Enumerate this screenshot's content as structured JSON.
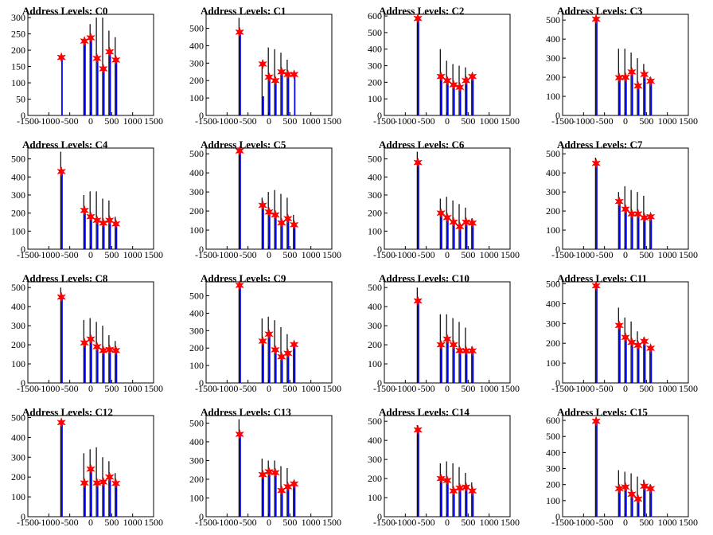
{
  "colors": {
    "black_bars": "#000000",
    "blue_bars": "#0000ff",
    "markers": "#ff0000",
    "frame": "#000000"
  },
  "chart_data": [
    {
      "type": "bar",
      "title": "Address Levels: C0",
      "xlim": [
        -1500,
        1500
      ],
      "ylim": [
        0,
        310
      ],
      "yticks": [
        0,
        50,
        100,
        150,
        200,
        250,
        300
      ],
      "xticks": [
        -1500,
        -1000,
        -500,
        0,
        500,
        1000,
        1500
      ],
      "peaks": [
        {
          "x": -700,
          "black": 0,
          "blue": 180,
          "marker": 178
        },
        {
          "x": -150,
          "black": 230,
          "blue": 230,
          "marker": 228
        },
        {
          "x": 0,
          "black": 280,
          "blue": 245,
          "marker": 238
        },
        {
          "x": 150,
          "black": 300,
          "blue": 180,
          "marker": 175
        },
        {
          "x": 300,
          "black": 300,
          "blue": 145,
          "marker": 143
        },
        {
          "x": 450,
          "black": 260,
          "blue": 200,
          "marker": 195
        },
        {
          "x": 600,
          "black": 240,
          "blue": 170,
          "marker": 170
        }
      ]
    },
    {
      "type": "bar",
      "title": "Address Levels: C1",
      "xlim": [
        -1500,
        1500
      ],
      "ylim": [
        0,
        580
      ],
      "yticks": [
        0,
        100,
        200,
        300,
        400,
        500
      ],
      "xticks": [
        -1500,
        -1000,
        -500,
        0,
        500,
        1000,
        1500
      ],
      "peaks": [
        {
          "x": -700,
          "black": 560,
          "blue": 480,
          "marker": 478
        },
        {
          "x": -150,
          "black": 300,
          "blue": 110,
          "marker": 295
        },
        {
          "x": 0,
          "black": 390,
          "blue": 220,
          "marker": 220
        },
        {
          "x": 150,
          "black": 380,
          "blue": 200,
          "marker": 200
        },
        {
          "x": 300,
          "black": 360,
          "blue": 250,
          "marker": 250
        },
        {
          "x": 450,
          "black": 320,
          "blue": 240,
          "marker": 235
        },
        {
          "x": 600,
          "black": 0,
          "blue": 235,
          "marker": 235
        }
      ]
    },
    {
      "type": "bar",
      "title": "Address Levels: C2",
      "xlim": [
        -1500,
        1500
      ],
      "ylim": [
        0,
        610
      ],
      "yticks": [
        0,
        100,
        200,
        300,
        400,
        500,
        600
      ],
      "xticks": [
        -1500,
        -1000,
        -500,
        0,
        500,
        1000,
        1500
      ],
      "peaks": [
        {
          "x": -700,
          "black": 600,
          "blue": 585,
          "marker": 585
        },
        {
          "x": -150,
          "black": 400,
          "blue": 230,
          "marker": 235
        },
        {
          "x": 0,
          "black": 330,
          "blue": 210,
          "marker": 210
        },
        {
          "x": 150,
          "black": 310,
          "blue": 180,
          "marker": 185
        },
        {
          "x": 300,
          "black": 300,
          "blue": 170,
          "marker": 170
        },
        {
          "x": 450,
          "black": 290,
          "blue": 230,
          "marker": 210
        },
        {
          "x": 600,
          "black": 250,
          "blue": 240,
          "marker": 235
        }
      ]
    },
    {
      "type": "bar",
      "title": "Address Levels: C3",
      "xlim": [
        -1500,
        1500
      ],
      "ylim": [
        0,
        530
      ],
      "yticks": [
        0,
        100,
        200,
        300,
        400,
        500
      ],
      "xticks": [
        -1500,
        -1000,
        -500,
        0,
        500,
        1000,
        1500
      ],
      "peaks": [
        {
          "x": -700,
          "black": 510,
          "blue": 505,
          "marker": 505
        },
        {
          "x": -150,
          "black": 350,
          "blue": 200,
          "marker": 198
        },
        {
          "x": 0,
          "black": 350,
          "blue": 200,
          "marker": 200
        },
        {
          "x": 150,
          "black": 330,
          "blue": 230,
          "marker": 228
        },
        {
          "x": 300,
          "black": 300,
          "blue": 155,
          "marker": 155
        },
        {
          "x": 450,
          "black": 270,
          "blue": 220,
          "marker": 215
        },
        {
          "x": 600,
          "black": 200,
          "blue": 180,
          "marker": 180
        }
      ]
    },
    {
      "type": "bar",
      "title": "Address Levels: C4",
      "xlim": [
        -1500,
        1500
      ],
      "ylim": [
        0,
        560
      ],
      "yticks": [
        0,
        100,
        200,
        300,
        400,
        500
      ],
      "xticks": [
        -1500,
        -1000,
        -500,
        0,
        500,
        1000,
        1500
      ],
      "peaks": [
        {
          "x": -700,
          "black": 540,
          "blue": 430,
          "marker": 430
        },
        {
          "x": -150,
          "black": 300,
          "blue": 215,
          "marker": 215
        },
        {
          "x": 0,
          "black": 320,
          "blue": 180,
          "marker": 180
        },
        {
          "x": 150,
          "black": 320,
          "blue": 160,
          "marker": 160
        },
        {
          "x": 300,
          "black": 280,
          "blue": 145,
          "marker": 145
        },
        {
          "x": 450,
          "black": 270,
          "blue": 160,
          "marker": 160
        },
        {
          "x": 600,
          "black": 180,
          "blue": 140,
          "marker": 140
        }
      ]
    },
    {
      "type": "bar",
      "title": "Address Levels: C5",
      "xlim": [
        -1500,
        1500
      ],
      "ylim": [
        0,
        530
      ],
      "yticks": [
        0,
        100,
        200,
        300,
        400,
        500
      ],
      "xticks": [
        -1500,
        -1000,
        -500,
        0,
        500,
        1000,
        1500
      ],
      "peaks": [
        {
          "x": -700,
          "black": 520,
          "blue": 515,
          "marker": 515
        },
        {
          "x": -150,
          "black": 270,
          "blue": 230,
          "marker": 230
        },
        {
          "x": 0,
          "black": 300,
          "blue": 200,
          "marker": 195
        },
        {
          "x": 150,
          "black": 310,
          "blue": 180,
          "marker": 180
        },
        {
          "x": 300,
          "black": 290,
          "blue": 140,
          "marker": 138
        },
        {
          "x": 450,
          "black": 270,
          "blue": 160,
          "marker": 160
        },
        {
          "x": 600,
          "black": 180,
          "blue": 130,
          "marker": 128
        }
      ]
    },
    {
      "type": "bar",
      "title": "Address Levels: C6",
      "xlim": [
        -1500,
        1500
      ],
      "ylim": [
        0,
        560
      ],
      "yticks": [
        0,
        100,
        200,
        300,
        400,
        500
      ],
      "xticks": [
        -1500,
        -1000,
        -500,
        0,
        500,
        1000,
        1500
      ],
      "peaks": [
        {
          "x": -700,
          "black": 540,
          "blue": 480,
          "marker": 480
        },
        {
          "x": -150,
          "black": 280,
          "blue": 200,
          "marker": 200
        },
        {
          "x": 0,
          "black": 290,
          "blue": 180,
          "marker": 175
        },
        {
          "x": 150,
          "black": 270,
          "blue": 150,
          "marker": 150
        },
        {
          "x": 300,
          "black": 250,
          "blue": 125,
          "marker": 125
        },
        {
          "x": 450,
          "black": 230,
          "blue": 150,
          "marker": 150
        },
        {
          "x": 600,
          "black": 170,
          "blue": 145,
          "marker": 145
        }
      ]
    },
    {
      "type": "bar",
      "title": "Address Levels: C7",
      "xlim": [
        -1500,
        1500
      ],
      "ylim": [
        0,
        530
      ],
      "yticks": [
        0,
        100,
        200,
        300,
        400,
        500
      ],
      "xticks": [
        -1500,
        -1000,
        -500,
        0,
        500,
        1000,
        1500
      ],
      "peaks": [
        {
          "x": -700,
          "black": 480,
          "blue": 450,
          "marker": 450
        },
        {
          "x": -150,
          "black": 300,
          "blue": 250,
          "marker": 250
        },
        {
          "x": 0,
          "black": 330,
          "blue": 210,
          "marker": 210
        },
        {
          "x": 150,
          "black": 310,
          "blue": 190,
          "marker": 185
        },
        {
          "x": 300,
          "black": 300,
          "blue": 180,
          "marker": 185
        },
        {
          "x": 450,
          "black": 280,
          "blue": 170,
          "marker": 165
        },
        {
          "x": 600,
          "black": 170,
          "blue": 170,
          "marker": 170
        }
      ]
    },
    {
      "type": "bar",
      "title": "Address Levels: C8",
      "xlim": [
        -1500,
        1500
      ],
      "ylim": [
        0,
        530
      ],
      "yticks": [
        0,
        100,
        200,
        300,
        400,
        500
      ],
      "xticks": [
        -1500,
        -1000,
        -500,
        0,
        500,
        1000,
        1500
      ],
      "peaks": [
        {
          "x": -700,
          "black": 500,
          "blue": 450,
          "marker": 450
        },
        {
          "x": -150,
          "black": 330,
          "blue": 210,
          "marker": 210
        },
        {
          "x": 0,
          "black": 340,
          "blue": 230,
          "marker": 230
        },
        {
          "x": 150,
          "black": 320,
          "blue": 190,
          "marker": 190
        },
        {
          "x": 300,
          "black": 300,
          "blue": 170,
          "marker": 170
        },
        {
          "x": 450,
          "black": 250,
          "blue": 175,
          "marker": 175
        },
        {
          "x": 600,
          "black": 220,
          "blue": 170,
          "marker": 170
        }
      ]
    },
    {
      "type": "bar",
      "title": "Address Levels: C9",
      "xlim": [
        -1500,
        1500
      ],
      "ylim": [
        0,
        580
      ],
      "yticks": [
        0,
        100,
        200,
        300,
        400,
        500
      ],
      "xticks": [
        -1500,
        -1000,
        -500,
        0,
        500,
        1000,
        1500
      ],
      "peaks": [
        {
          "x": -700,
          "black": 580,
          "blue": 560,
          "marker": 560
        },
        {
          "x": -150,
          "black": 370,
          "blue": 240,
          "marker": 240
        },
        {
          "x": 0,
          "black": 380,
          "blue": 280,
          "marker": 280
        },
        {
          "x": 150,
          "black": 360,
          "blue": 190,
          "marker": 190
        },
        {
          "x": 300,
          "black": 320,
          "blue": 150,
          "marker": 150
        },
        {
          "x": 450,
          "black": 280,
          "blue": 170,
          "marker": 170
        },
        {
          "x": 600,
          "black": 230,
          "blue": 220,
          "marker": 220
        }
      ]
    },
    {
      "type": "bar",
      "title": "Address Levels: C10",
      "xlim": [
        -1500,
        1500
      ],
      "ylim": [
        0,
        530
      ],
      "yticks": [
        0,
        100,
        200,
        300,
        400,
        500
      ],
      "xticks": [
        -1500,
        -1000,
        -500,
        0,
        500,
        1000,
        1500
      ],
      "peaks": [
        {
          "x": -700,
          "black": 500,
          "blue": 430,
          "marker": 430
        },
        {
          "x": -150,
          "black": 360,
          "blue": 200,
          "marker": 200
        },
        {
          "x": 0,
          "black": 360,
          "blue": 230,
          "marker": 230
        },
        {
          "x": 150,
          "black": 340,
          "blue": 200,
          "marker": 200
        },
        {
          "x": 300,
          "black": 320,
          "blue": 170,
          "marker": 170
        },
        {
          "x": 450,
          "black": 290,
          "blue": 170,
          "marker": 168
        },
        {
          "x": 600,
          "black": 190,
          "blue": 170,
          "marker": 168
        }
      ]
    },
    {
      "type": "bar",
      "title": "Address Levels: C11",
      "xlim": [
        -1500,
        1500
      ],
      "ylim": [
        0,
        510
      ],
      "yticks": [
        0,
        100,
        200,
        300,
        400,
        500
      ],
      "xticks": [
        -1500,
        -1000,
        -500,
        0,
        500,
        1000,
        1500
      ],
      "peaks": [
        {
          "x": -700,
          "black": 490,
          "blue": 490,
          "marker": 490
        },
        {
          "x": -150,
          "black": 380,
          "blue": 290,
          "marker": 290
        },
        {
          "x": 0,
          "black": 330,
          "blue": 230,
          "marker": 230
        },
        {
          "x": 150,
          "black": 310,
          "blue": 200,
          "marker": 205
        },
        {
          "x": 300,
          "black": 260,
          "blue": 190,
          "marker": 190
        },
        {
          "x": 450,
          "black": 230,
          "blue": 210,
          "marker": 210
        },
        {
          "x": 600,
          "black": 180,
          "blue": 180,
          "marker": 175
        }
      ]
    },
    {
      "type": "bar",
      "title": "Address Levels: C12",
      "xlim": [
        -1500,
        1500
      ],
      "ylim": [
        0,
        510
      ],
      "yticks": [
        0,
        100,
        200,
        300,
        400,
        500
      ],
      "xticks": [
        -1500,
        -1000,
        -500,
        0,
        500,
        1000,
        1500
      ],
      "peaks": [
        {
          "x": -700,
          "black": 480,
          "blue": 475,
          "marker": 475
        },
        {
          "x": -150,
          "black": 320,
          "blue": 170,
          "marker": 170
        },
        {
          "x": 0,
          "black": 340,
          "blue": 240,
          "marker": 240
        },
        {
          "x": 150,
          "black": 350,
          "blue": 170,
          "marker": 170
        },
        {
          "x": 300,
          "black": 300,
          "blue": 175,
          "marker": 175
        },
        {
          "x": 450,
          "black": 280,
          "blue": 200,
          "marker": 200
        },
        {
          "x": 600,
          "black": 220,
          "blue": 170,
          "marker": 168
        }
      ]
    },
    {
      "type": "bar",
      "title": "Address Levels: C13",
      "xlim": [
        -1500,
        1500
      ],
      "ylim": [
        0,
        540
      ],
      "yticks": [
        0,
        100,
        200,
        300,
        400,
        500
      ],
      "xticks": [
        -1500,
        -1000,
        -500,
        0,
        500,
        1000,
        1500
      ],
      "peaks": [
        {
          "x": -700,
          "black": 520,
          "blue": 440,
          "marker": 440
        },
        {
          "x": -150,
          "black": 310,
          "blue": 225,
          "marker": 225
        },
        {
          "x": 0,
          "black": 300,
          "blue": 245,
          "marker": 240
        },
        {
          "x": 150,
          "black": 300,
          "blue": 235,
          "marker": 235
        },
        {
          "x": 300,
          "black": 270,
          "blue": 140,
          "marker": 140
        },
        {
          "x": 450,
          "black": 260,
          "blue": 160,
          "marker": 160
        },
        {
          "x": 600,
          "black": 190,
          "blue": 175,
          "marker": 175
        }
      ]
    },
    {
      "type": "bar",
      "title": "Address Levels: C14",
      "xlim": [
        -1500,
        1500
      ],
      "ylim": [
        0,
        530
      ],
      "yticks": [
        0,
        100,
        200,
        300,
        400,
        500
      ],
      "xticks": [
        -1500,
        -1000,
        -500,
        0,
        500,
        1000,
        1500
      ],
      "peaks": [
        {
          "x": -700,
          "black": 480,
          "blue": 455,
          "marker": 455
        },
        {
          "x": -150,
          "black": 280,
          "blue": 200,
          "marker": 200
        },
        {
          "x": 0,
          "black": 290,
          "blue": 190,
          "marker": 190
        },
        {
          "x": 150,
          "black": 280,
          "blue": 135,
          "marker": 135
        },
        {
          "x": 300,
          "black": 260,
          "blue": 150,
          "marker": 150
        },
        {
          "x": 450,
          "black": 230,
          "blue": 155,
          "marker": 155
        },
        {
          "x": 600,
          "black": 180,
          "blue": 135,
          "marker": 135
        }
      ]
    },
    {
      "type": "bar",
      "title": "Address Levels: C15",
      "xlim": [
        -1500,
        1500
      ],
      "ylim": [
        0,
        630
      ],
      "yticks": [
        0,
        100,
        200,
        300,
        400,
        500,
        600
      ],
      "xticks": [
        -1500,
        -1000,
        -500,
        0,
        500,
        1000,
        1500
      ],
      "peaks": [
        {
          "x": -700,
          "black": 610,
          "blue": 595,
          "marker": 595
        },
        {
          "x": -150,
          "black": 290,
          "blue": 175,
          "marker": 175
        },
        {
          "x": 0,
          "black": 280,
          "blue": 185,
          "marker": 185
        },
        {
          "x": 150,
          "black": 270,
          "blue": 140,
          "marker": 140
        },
        {
          "x": 300,
          "black": 250,
          "blue": 110,
          "marker": 110
        },
        {
          "x": 450,
          "black": 230,
          "blue": 190,
          "marker": 190
        },
        {
          "x": 600,
          "black": 200,
          "blue": 175,
          "marker": 175
        }
      ]
    }
  ]
}
